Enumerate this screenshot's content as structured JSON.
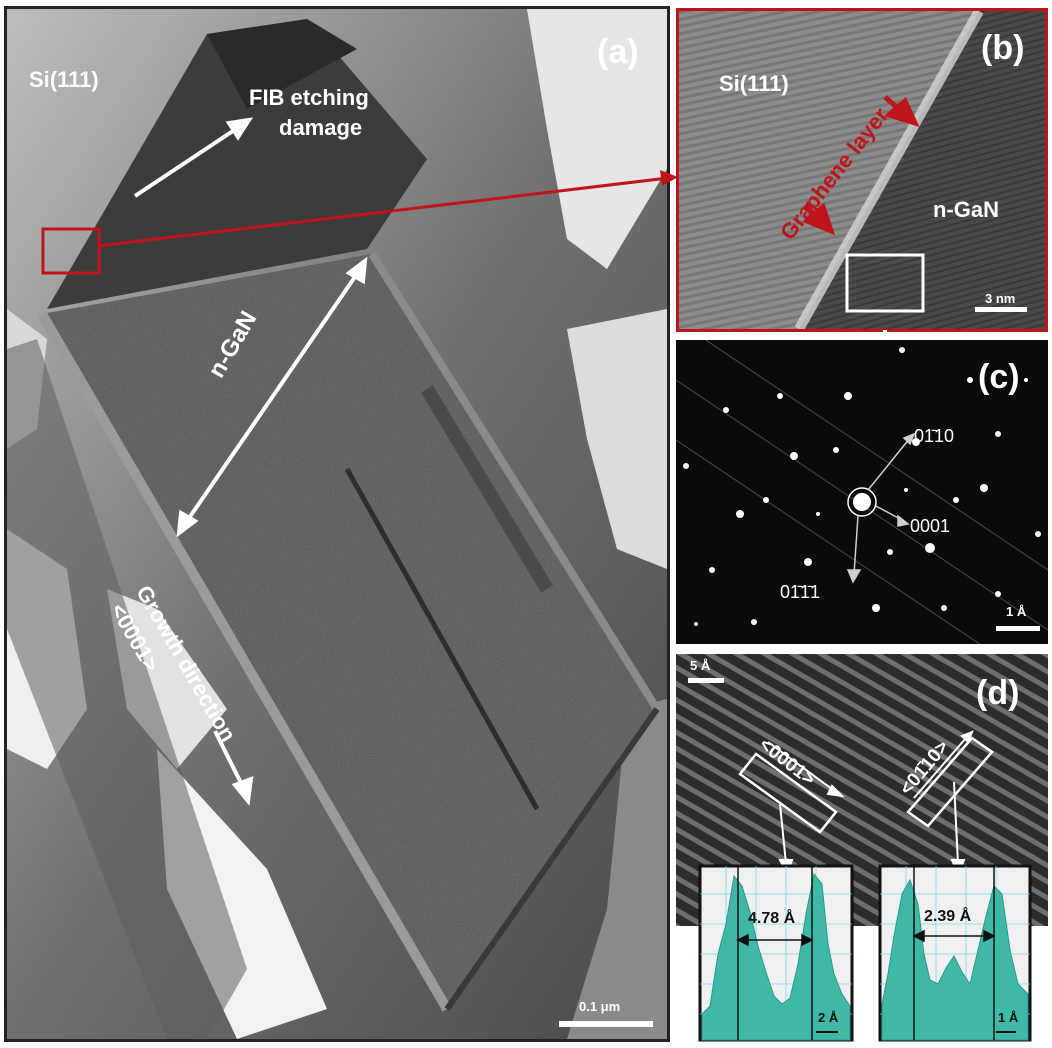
{
  "panel_a": {
    "label": "(a)",
    "substrate": "Si(111)",
    "damage_line1": "FIB etching",
    "damage_line2": "damage",
    "material": "n-GaN",
    "growth_line1": "Growth direction",
    "growth_line2": "<0001>",
    "scale_bar": "0.1 μm"
  },
  "panel_b": {
    "label": "(b)",
    "substrate": "Si(111)",
    "interface": "Graphene layer",
    "material": "n-GaN",
    "scale_bar": "3 nm"
  },
  "panel_c": {
    "label": "(c)",
    "spot1": "01̄10",
    "spot2": "0001",
    "spot3": "01̄1̄1",
    "scale_bar": "1 Å"
  },
  "panel_d": {
    "label": "(d)",
    "scale_bar": "5 Å",
    "dir1": "<0001>",
    "dir2": "<01̄10>",
    "profile1_spacing": "4.78 Å",
    "profile1_scale": "2 Å",
    "profile2_spacing": "2.39 Å",
    "profile2_scale": "1 Å"
  },
  "colors": {
    "highlight": "#c0141c",
    "profile_fill": "#3fb8a8",
    "grid": "#7fd8e8"
  }
}
